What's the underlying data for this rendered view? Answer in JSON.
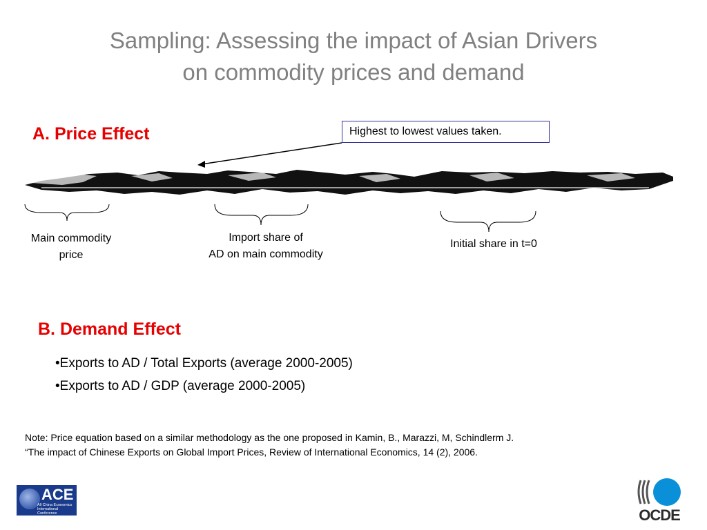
{
  "title": {
    "line1": "Sampling: Assessing the impact of Asian Drivers",
    "line2": "on commodity prices and demand"
  },
  "price_effect": {
    "heading": "A. Price Effect",
    "callout": "Highest to lowest values taken.",
    "labels": {
      "main_commodity_line1": "Main commodity",
      "main_commodity_line2": "price",
      "import_share_line1": "Import share of",
      "import_share_line2": "AD on main commodity",
      "initial_share": "Initial share in t=0"
    }
  },
  "demand_effect": {
    "heading": "B. Demand Effect",
    "bullets": [
      "•Exports to AD / Total Exports (average 2000-2005)",
      "•Exports to AD / GDP (average 2000-2005)"
    ]
  },
  "note": {
    "line1": "Note: Price equation based on a similar methodology as the one proposed in Kamin, B., Marazzi, M, Schindlerm J.",
    "line2": "“The impact of Chinese Exports on Global Import Prices, Review of International Economics, 14 (2), 2006."
  },
  "logos": {
    "ace_word": "ACE",
    "ace_sub_line1": "All China Economics",
    "ace_sub_line2": "International Conference",
    "ocde_word": "OCDE"
  },
  "colors": {
    "title": "#808080",
    "heading": "#e60000",
    "callout_border": "#33339a",
    "ace_bg": "#1a3b8c",
    "ocde_blue": "#0a8fd9"
  }
}
